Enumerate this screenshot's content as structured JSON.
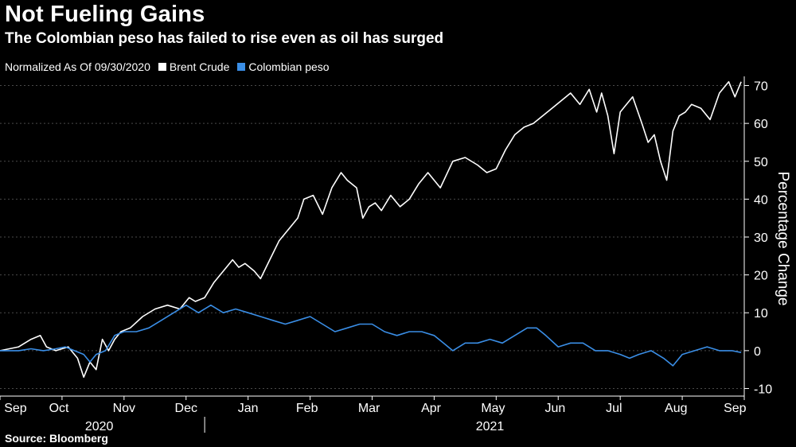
{
  "header": {
    "title": "Not Fueling Gains",
    "subtitle": "The Colombian peso has failed to rise even as oil has surged"
  },
  "legend": {
    "note": "Normalized As Of 09/30/2020",
    "brent_label": "Brent Crude",
    "peso_label": "Colombian peso"
  },
  "footer": {
    "source": "Source: Bloomberg"
  },
  "colors": {
    "brent": "#ffffff",
    "peso": "#3a8ee6",
    "background": "#000000"
  },
  "chart_data": {
    "type": "line",
    "title": "Not Fueling Gains",
    "ylabel": "Percentage Change",
    "ylim": [
      -12,
      72
    ],
    "yticks": [
      -10,
      0,
      10,
      20,
      30,
      40,
      50,
      60,
      70
    ],
    "xlim": [
      0,
      12.0
    ],
    "xticks": [
      {
        "label": "Sep",
        "x": 0.25
      },
      {
        "label": "Oct",
        "x": 0.95
      },
      {
        "label": "Nov",
        "x": 2.0
      },
      {
        "label": "Dec",
        "x": 3.0
      },
      {
        "label": "Jan",
        "x": 4.0
      },
      {
        "label": "Feb",
        "x": 4.95
      },
      {
        "label": "Mar",
        "x": 5.95
      },
      {
        "label": "Apr",
        "x": 6.95
      },
      {
        "label": "May",
        "x": 7.95
      },
      {
        "label": "Jun",
        "x": 8.95
      },
      {
        "label": "Jul",
        "x": 9.9
      },
      {
        "label": "Aug",
        "x": 10.9
      },
      {
        "label": "Sep",
        "x": 11.85
      }
    ],
    "year_labels": [
      {
        "label": "2020",
        "x": 1.6
      },
      {
        "label": "2021",
        "x": 7.9
      }
    ],
    "year_divider_x": 3.3,
    "series": [
      {
        "name": "Brent Crude",
        "x": [
          0,
          0.3,
          0.5,
          0.65,
          0.75,
          0.9,
          1.1,
          1.25,
          1.35,
          1.45,
          1.55,
          1.65,
          1.75,
          1.85,
          1.95,
          2.1,
          2.3,
          2.5,
          2.7,
          2.9,
          3.05,
          3.15,
          3.3,
          3.45,
          3.6,
          3.75,
          3.85,
          3.95,
          4.1,
          4.2,
          4.35,
          4.5,
          4.7,
          4.8,
          4.9,
          5.05,
          5.2,
          5.35,
          5.5,
          5.6,
          5.75,
          5.85,
          5.95,
          6.05,
          6.15,
          6.3,
          6.45,
          6.6,
          6.75,
          6.9,
          7.1,
          7.3,
          7.5,
          7.7,
          7.85,
          8.0,
          8.15,
          8.3,
          8.45,
          8.6,
          8.75,
          8.9,
          9.05,
          9.2,
          9.35,
          9.5,
          9.62,
          9.7,
          9.8,
          9.9,
          10.0,
          10.1,
          10.2,
          10.35,
          10.45,
          10.55,
          10.65,
          10.75,
          10.85,
          10.95,
          11.05,
          11.15,
          11.3,
          11.45,
          11.6,
          11.75,
          11.85,
          11.95
        ],
        "values": [
          0,
          1,
          3,
          4,
          1,
          0,
          1,
          -2,
          -7,
          -3,
          -5,
          3,
          0,
          3,
          5,
          6,
          9,
          11,
          12,
          11,
          14,
          13,
          14,
          18,
          21,
          24,
          22,
          23,
          21,
          19,
          24,
          29,
          33,
          35,
          40,
          41,
          36,
          43,
          47,
          45,
          43,
          35,
          38,
          39,
          37,
          41,
          38,
          40,
          44,
          47,
          43,
          50,
          51,
          49,
          47,
          48,
          53,
          57,
          59,
          60,
          62,
          64,
          66,
          68,
          65,
          69,
          63,
          68,
          62,
          52,
          63,
          65,
          67,
          60,
          55,
          57,
          50,
          45,
          58,
          62,
          63,
          65,
          64,
          61,
          68,
          71,
          67,
          71
        ]
      },
      {
        "name": "Colombian peso",
        "x": [
          0,
          0.3,
          0.5,
          0.7,
          0.9,
          1.05,
          1.2,
          1.35,
          1.45,
          1.55,
          1.7,
          1.85,
          2.0,
          2.2,
          2.4,
          2.6,
          2.8,
          3.0,
          3.2,
          3.4,
          3.6,
          3.8,
          4.0,
          4.2,
          4.4,
          4.6,
          4.8,
          5.0,
          5.2,
          5.4,
          5.6,
          5.8,
          6.0,
          6.2,
          6.4,
          6.6,
          6.8,
          7.0,
          7.15,
          7.3,
          7.5,
          7.7,
          7.9,
          8.1,
          8.3,
          8.5,
          8.65,
          8.8,
          9.0,
          9.2,
          9.4,
          9.6,
          9.8,
          10.0,
          10.15,
          10.3,
          10.5,
          10.7,
          10.85,
          11.0,
          11.2,
          11.4,
          11.6,
          11.8,
          11.95
        ],
        "values": [
          0,
          0,
          0.5,
          0,
          0.5,
          1,
          0,
          -1,
          -3,
          -1,
          0,
          4,
          5,
          5,
          6,
          8,
          10,
          12,
          10,
          12,
          10,
          11,
          10,
          9,
          8,
          7,
          8,
          9,
          7,
          5,
          6,
          7,
          7,
          5,
          4,
          5,
          5,
          4,
          2,
          0,
          2,
          2,
          3,
          2,
          4,
          6,
          6,
          4,
          1,
          2,
          2,
          0,
          0,
          -1,
          -2,
          -1,
          0,
          -2,
          -4,
          -1,
          0,
          1,
          0,
          0,
          -0.5
        ]
      }
    ]
  }
}
